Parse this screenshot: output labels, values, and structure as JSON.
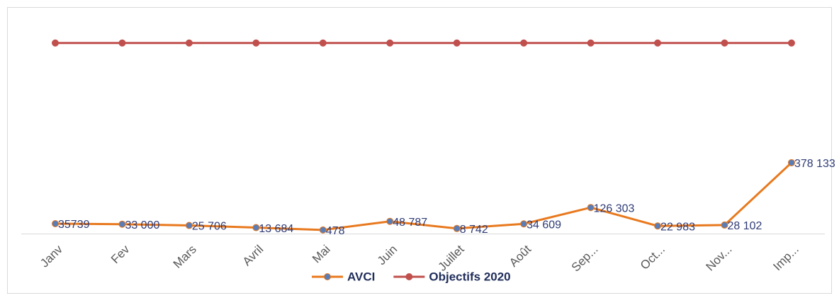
{
  "chart_data": {
    "type": "line",
    "categories": [
      "Janv",
      "Fev",
      "Mars",
      "Avril",
      "Mai",
      "Juin",
      "Juillet",
      "Août",
      "Sep...",
      "Oct...",
      "Nov...",
      "Imp..."
    ],
    "series": [
      {
        "name": "AVCI",
        "color": "#e8791e",
        "marker_color": "#5a7db5",
        "values": [
          35739,
          33000,
          25706,
          13684,
          478,
          48787,
          8742,
          34609,
          126303,
          22983,
          28102,
          378133
        ],
        "value_labels": [
          "35739",
          "33 000",
          "25 706",
          "13 684",
          "478",
          "48 787",
          "8 742",
          "34 609",
          "126 303",
          "22 983",
          "28 102",
          "378 133"
        ]
      },
      {
        "name": "Objectifs 2020",
        "color": "#c0504d",
        "marker_color": "#c0504d",
        "values": [
          1050000,
          1050000,
          1050000,
          1050000,
          1050000,
          1050000,
          1050000,
          1050000,
          1050000,
          1050000,
          1050000,
          1050000
        ]
      }
    ],
    "ylim": [
      0,
      1200000
    ],
    "legend": "bottom"
  }
}
